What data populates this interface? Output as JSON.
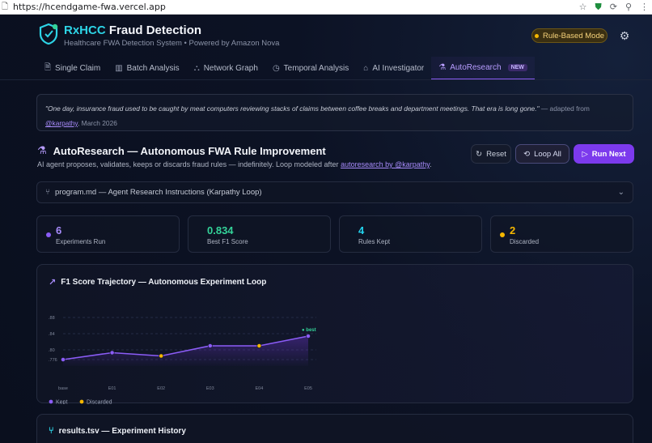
{
  "browser": {
    "url": "https://hcendgame-fwa.vercel.app"
  },
  "header": {
    "brand_accent": "RxHCC",
    "brand_rest": "Fraud Detection",
    "subtitle": "Healthcare FWA Detection System • Powered by Amazon Nova",
    "mode_label": "Rule-Based Mode"
  },
  "tabs": [
    {
      "label": "Single Claim",
      "icon": "document-icon"
    },
    {
      "label": "Batch Analysis",
      "icon": "bar-chart-icon"
    },
    {
      "label": "Network Graph",
      "icon": "network-icon"
    },
    {
      "label": "Temporal Analysis",
      "icon": "clock-icon"
    },
    {
      "label": "AI Investigator",
      "icon": "robot-icon"
    },
    {
      "label": "AutoResearch",
      "icon": "flask-icon",
      "badge": "NEW",
      "active": true
    }
  ],
  "quote": {
    "text": "\"One day, insurance fraud used to be caught by meat computers reviewing stacks of claims between coffee breaks and department meetings. That era is long gone.\"",
    "attribution_prefix": "— adapted from",
    "author_link": "@karpathy",
    "date": ", March 2026"
  },
  "autoresearch": {
    "title": "AutoResearch — Autonomous FWA Rule Improvement",
    "description_prefix": "AI agent proposes, validates, keeps or discards fraud rules — indefinitely. Loop modeled after",
    "description_link": "autoresearch by @karpathy",
    "description_suffix": ".",
    "reset_label": "Reset",
    "loop_all_label": "Loop All",
    "run_next_label": "Run Next",
    "program_label": "program.md — Agent Research Instructions (Karpathy Loop)"
  },
  "stats": [
    {
      "value": "6",
      "label": "Experiments Run",
      "color": "#8b5cf6",
      "dot": true
    },
    {
      "value": "0.834",
      "label": "Best F1 Score",
      "color": "#34d399",
      "dot": false
    },
    {
      "value": "4",
      "label": "Rules Kept",
      "color": "#22d3ee",
      "dot": false
    },
    {
      "value": "2",
      "label": "Discarded",
      "color": "#f5b700",
      "dot": true
    }
  ],
  "chart_data": {
    "type": "line",
    "title": "F1 Score Trajectory — Autonomous Experiment Loop",
    "categories": [
      "base",
      "E01",
      "E02",
      "E03",
      "E04",
      "E05"
    ],
    "values": [
      0.776,
      0.793,
      0.785,
      0.81,
      0.81,
      0.834
    ],
    "status": [
      "kept",
      "kept",
      "discarded",
      "kept",
      "discarded",
      "kept"
    ],
    "yticks": [
      ".776",
      ".80",
      ".84",
      ".88"
    ],
    "ylim": [
      0.76,
      0.89
    ],
    "best_label": "best",
    "legend": [
      {
        "label": "Kept",
        "color": "#8b5cf6"
      },
      {
        "label": "Discarded",
        "color": "#f5b700"
      }
    ],
    "grid": true,
    "legend_placement": "bottom-left"
  },
  "results": {
    "title": "results.tsv — Experiment History"
  },
  "colors": {
    "accent": "#8b5cf6",
    "kept": "#8b5cf6",
    "discarded": "#f5b700",
    "best": "#34d399"
  }
}
